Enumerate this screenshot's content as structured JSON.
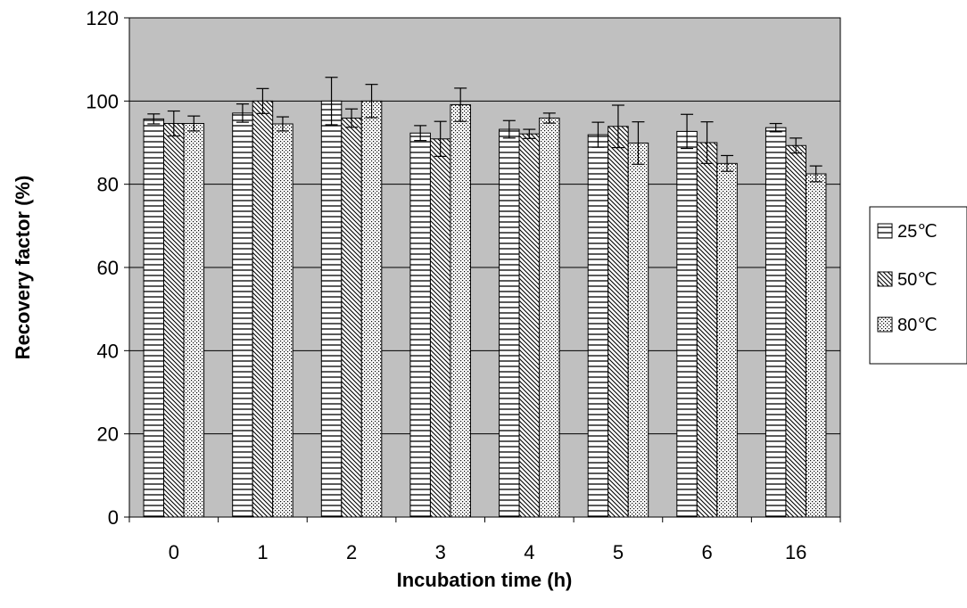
{
  "chart_data": {
    "type": "bar",
    "title": "",
    "xlabel": "Incubation time (h)",
    "ylabel": "Recovery factor (%)",
    "ylim": [
      0,
      120
    ],
    "yticks": [
      0,
      20,
      40,
      60,
      80,
      100,
      120
    ],
    "categories": [
      "0",
      "1",
      "2",
      "3",
      "4",
      "5",
      "6",
      "16"
    ],
    "grid": true,
    "legend_position": "right",
    "background_color": "#c0c0c0",
    "series": [
      {
        "name": "25℃",
        "pattern": "horizontal-lines",
        "values": [
          95.7,
          97.1,
          100.0,
          92.3,
          93.2,
          91.9,
          92.7,
          93.6
        ],
        "errors": [
          1.2,
          2.2,
          5.7,
          1.8,
          2.1,
          3.0,
          4.1,
          1.0
        ]
      },
      {
        "name": "50℃",
        "pattern": "diagonal-lines",
        "values": [
          94.6,
          100.0,
          95.9,
          90.9,
          92.1,
          93.9,
          90.0,
          89.3
        ],
        "errors": [
          3.0,
          3.0,
          2.2,
          4.2,
          1.1,
          5.1,
          5.0,
          1.8
        ]
      },
      {
        "name": "80℃",
        "pattern": "dots",
        "values": [
          94.6,
          94.5,
          100.0,
          99.1,
          95.9,
          89.9,
          85.0,
          82.5
        ],
        "errors": [
          1.8,
          1.7,
          4.0,
          4.0,
          1.2,
          5.1,
          1.9,
          1.9
        ]
      }
    ]
  }
}
